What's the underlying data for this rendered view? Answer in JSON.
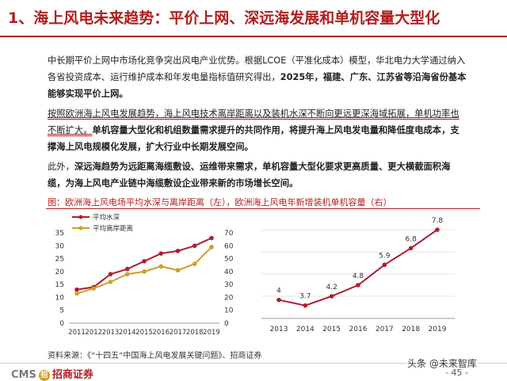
{
  "title": "1、海上风电未来趋势：平价上网、深远海发展和单机容量大型化",
  "paragraphs": [
    {
      "p1": "中长期平价上网中市场化竞争突出风电产业优势。根据LCOE（平准化成本）模型，华北电力大学通过纳入各省投资成本、运行维护成本和年发电量指标值研究得出，",
      "p1_bold": "2025年，福建、广东、江苏省等沿海省份基本能够实现平价上网。"
    },
    {
      "p2_hl": "按照欧洲海上风电发展趋势，海上风电技术离岸距离以及装机水深不断向更远更深海域拓展，单机功率也不断扩大。",
      "p2_bold": "单机容量大型化和机组数量需求提升的共同作用，将提升海上风电发电量和降低度电成本，支撑海上风电规模化发展，扩大行业中长期发展空间。"
    },
    {
      "p3": "此外，",
      "p3_bold": "深远海趋势为远距离海缆敷设、运维带来需求，单机容量大型化要求更高质量、更大横截面积海缆，为海上风电产业链中海缆敷设企业带来新的市场增长空间。"
    }
  ],
  "figure_caption": "图：欧洲海上风电场平均水深与离岸距离（左），欧洲海上风电年新增装机单机容量（右）",
  "source": "资料来源：《“十四五”中国海上风电发展关键问题》、招商证券",
  "footer": {
    "logo_cms": "CMS",
    "logo_m": "招",
    "logo_name": "招商证券",
    "page": "- 45 -"
  },
  "watermark": "头条 @未来智库",
  "colors": {
    "accent": "#b11e1e",
    "depth_series": "#b01c2e",
    "distance_series": "#c9a227"
  },
  "chart_data": [
    {
      "type": "line",
      "categories": [
        "2011",
        "2012",
        "2013",
        "2014",
        "2015",
        "2016",
        "2017",
        "2018",
        "2019"
      ],
      "series": [
        {
          "name": "平均水深",
          "axis": "left",
          "values": [
            13,
            14,
            19,
            21,
            24,
            27,
            28,
            30,
            33
          ]
        },
        {
          "name": "平均离岸距离",
          "axis": "right",
          "values": [
            23,
            27,
            32,
            38,
            40,
            44,
            41,
            46,
            59
          ]
        }
      ],
      "y_left": {
        "ticks": [
          "0",
          "5",
          "10",
          "15",
          "20",
          "25",
          "30",
          "35"
        ],
        "range": [
          0,
          35
        ]
      },
      "y_right": {
        "ticks": [
          "0",
          "10",
          "20",
          "30",
          "40",
          "50",
          "60",
          "70"
        ],
        "range": [
          0,
          70
        ]
      },
      "legend": "top-left"
    },
    {
      "type": "line",
      "categories": [
        "2013",
        "2014",
        "2015",
        "2016",
        "2017",
        "2018",
        "2019"
      ],
      "values": [
        4,
        3.7,
        4.2,
        4.8,
        5.9,
        6.8,
        7.8
      ],
      "data_labels": [
        "4",
        "3.7",
        "4.2",
        "4.8",
        "5.9",
        "6.8",
        "7.8"
      ],
      "grid": true
    }
  ]
}
